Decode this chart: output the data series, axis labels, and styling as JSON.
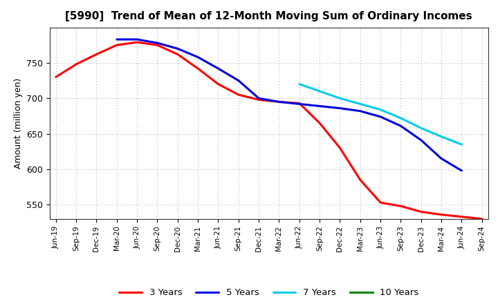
{
  "title": "[5990]  Trend of Mean of 12-Month Moving Sum of Ordinary Incomes",
  "ylabel": "Amount (million yen)",
  "ylim": [
    530,
    800
  ],
  "yticks": [
    550,
    600,
    650,
    700,
    750
  ],
  "background_color": "#ffffff",
  "grid_color": "#888888",
  "x_labels": [
    "Jun-19",
    "Sep-19",
    "Dec-19",
    "Mar-20",
    "Jun-20",
    "Sep-20",
    "Dec-20",
    "Mar-21",
    "Jun-21",
    "Sep-21",
    "Dec-21",
    "Mar-22",
    "Jun-22",
    "Sep-22",
    "Dec-22",
    "Mar-23",
    "Jun-23",
    "Sep-23",
    "Dec-23",
    "Mar-24",
    "Jun-24",
    "Sep-24"
  ],
  "series": {
    "3 Years": {
      "color": "#ff0000",
      "values": [
        730,
        748,
        762,
        775,
        779,
        775,
        762,
        742,
        720,
        705,
        698,
        695,
        693,
        665,
        630,
        585,
        553,
        548,
        540,
        536,
        533,
        530
      ]
    },
    "5 Years": {
      "color": "#0000dd",
      "values": [
        null,
        null,
        null,
        783,
        783,
        778,
        770,
        758,
        742,
        725,
        700,
        695,
        692,
        689,
        686,
        682,
        674,
        661,
        641,
        615,
        598,
        null
      ]
    },
    "7 Years": {
      "color": "#00ccee",
      "values": [
        null,
        null,
        null,
        null,
        null,
        null,
        null,
        null,
        null,
        null,
        null,
        null,
        720,
        710,
        700,
        692,
        684,
        672,
        658,
        646,
        635,
        null
      ]
    },
    "10 Years": {
      "color": "#008800",
      "values": [
        null,
        null,
        null,
        null,
        null,
        null,
        null,
        null,
        null,
        null,
        null,
        null,
        null,
        null,
        null,
        null,
        null,
        null,
        null,
        null,
        null,
        null
      ]
    }
  },
  "legend_order": [
    "3 Years",
    "5 Years",
    "7 Years",
    "10 Years"
  ]
}
